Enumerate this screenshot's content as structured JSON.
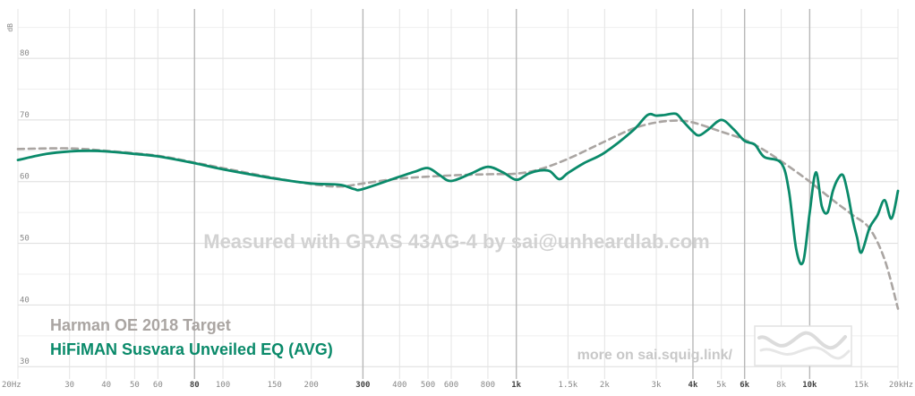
{
  "chart_data": {
    "type": "line",
    "ylabel": "dB",
    "x_scale": "log",
    "xlim": [
      20,
      20000
    ],
    "ylim": [
      28,
      88
    ],
    "y_ticks": [
      30,
      40,
      50,
      60,
      70,
      80
    ],
    "x_ticks": [
      {
        "value": 20,
        "label": "20Hz",
        "major": false
      },
      {
        "value": 30,
        "label": "30",
        "major": false
      },
      {
        "value": 40,
        "label": "40",
        "major": false
      },
      {
        "value": 50,
        "label": "50",
        "major": false
      },
      {
        "value": 60,
        "label": "60",
        "major": false
      },
      {
        "value": 80,
        "label": "80",
        "major": true
      },
      {
        "value": 100,
        "label": "100",
        "major": false
      },
      {
        "value": 150,
        "label": "150",
        "major": false
      },
      {
        "value": 200,
        "label": "200",
        "major": false
      },
      {
        "value": 300,
        "label": "300",
        "major": true
      },
      {
        "value": 400,
        "label": "400",
        "major": false
      },
      {
        "value": 500,
        "label": "500",
        "major": false
      },
      {
        "value": 600,
        "label": "600",
        "major": false
      },
      {
        "value": 800,
        "label": "800",
        "major": false
      },
      {
        "value": 1000,
        "label": "1k",
        "major": true
      },
      {
        "value": 1500,
        "label": "1.5k",
        "major": false
      },
      {
        "value": 2000,
        "label": "2k",
        "major": false
      },
      {
        "value": 3000,
        "label": "3k",
        "major": false
      },
      {
        "value": 4000,
        "label": "4k",
        "major": true
      },
      {
        "value": 5000,
        "label": "5k",
        "major": false
      },
      {
        "value": 6000,
        "label": "6k",
        "major": true
      },
      {
        "value": 8000,
        "label": "8k",
        "major": false
      },
      {
        "value": 10000,
        "label": "10k",
        "major": true
      },
      {
        "value": 15000,
        "label": "15k",
        "major": false
      },
      {
        "value": 20000,
        "label": "20kHz",
        "major": false
      }
    ],
    "series": [
      {
        "name": "Harman OE 2018 Target",
        "color": "#aaa5a2",
        "style": "dashed",
        "x": [
          20,
          30,
          40,
          60,
          80,
          100,
          150,
          200,
          250,
          300,
          400,
          600,
          800,
          1000,
          1200,
          1500,
          2000,
          2500,
          3000,
          3500,
          4000,
          5000,
          6000,
          7000,
          8000,
          9000,
          10000,
          12000,
          14000,
          16000,
          18000,
          20000
        ],
        "values": [
          65.3,
          65.4,
          65.0,
          64.2,
          63.1,
          62.2,
          60.6,
          59.6,
          59.2,
          59.7,
          60.5,
          61.0,
          61.2,
          61.3,
          62.0,
          63.7,
          66.5,
          68.6,
          69.6,
          69.9,
          69.6,
          68.1,
          66.8,
          65.1,
          63.3,
          61.6,
          60.0,
          57.0,
          54.6,
          52.4,
          47.4,
          39.4
        ]
      },
      {
        "name": "HiFiMAN Susvara Unveiled EQ (AVG)",
        "color": "#0a8a6a",
        "style": "solid",
        "x": [
          20,
          25,
          30,
          35,
          40,
          50,
          60,
          80,
          100,
          150,
          200,
          250,
          280,
          300,
          400,
          450,
          500,
          550,
          600,
          700,
          800,
          900,
          1000,
          1100,
          1200,
          1300,
          1400,
          1500,
          1700,
          2000,
          2500,
          2800,
          3000,
          3200,
          3500,
          3700,
          4000,
          4200,
          4500,
          5000,
          5500,
          6000,
          6500,
          7000,
          8000,
          8500,
          9000,
          9500,
          10000,
          10500,
          11000,
          11500,
          12000,
          12500,
          13000,
          13500,
          14000,
          14500,
          15000,
          16000,
          17000,
          18000,
          19000,
          20000
        ],
        "values": [
          63.5,
          64.5,
          64.9,
          65.0,
          64.9,
          64.5,
          64.1,
          63.0,
          62.0,
          60.5,
          59.7,
          59.5,
          58.8,
          58.8,
          60.8,
          61.6,
          62.2,
          61.0,
          60.1,
          61.3,
          62.4,
          61.5,
          60.3,
          61.3,
          61.8,
          61.7,
          60.4,
          61.4,
          63.0,
          64.7,
          68.3,
          70.8,
          70.7,
          70.8,
          71.0,
          69.8,
          68.1,
          67.5,
          68.4,
          70.0,
          68.5,
          66.6,
          66.0,
          64.0,
          63.0,
          58.5,
          49.0,
          47.0,
          55.0,
          61.5,
          56.0,
          55.0,
          58.5,
          60.5,
          61.0,
          58.0,
          54.0,
          51.0,
          48.5,
          52.5,
          54.5,
          57.0,
          54.0,
          58.5
        ]
      }
    ],
    "legend": [
      "Harman OE 2018 Target",
      "HiFiMAN Susvara Unveiled EQ (AVG)"
    ],
    "legend_placement": "bottom-left",
    "grid": true
  },
  "watermark": "Measured with GRAS 43AG-4 by sai@unheardlab.com",
  "footer_link": "more on sai.squig.link/",
  "logo_icon": "squiggle-logo-icon"
}
